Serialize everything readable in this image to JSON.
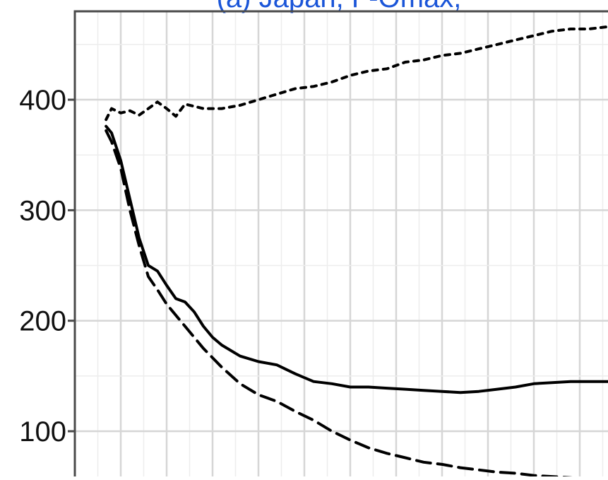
{
  "chart_data": {
    "type": "line",
    "title": "(a) Japan, F-Omax,",
    "xlabel": "",
    "ylabel": "",
    "ylim": [
      45,
      480
    ],
    "xlim": [
      0,
      30
    ],
    "yticks": [
      100,
      200,
      300,
      400
    ],
    "grid": true,
    "legend": "none",
    "series": [
      {
        "style": "dotted",
        "color": "#000000",
        "x": [
          1.7,
          2.0,
          2.5,
          3.0,
          3.5,
          4.0,
          4.5,
          5.0,
          5.5,
          6.0,
          6.5,
          7.0,
          8.0,
          9.0,
          10.0,
          11.0,
          12.0,
          13.0,
          14.0,
          15.0,
          16.0,
          17.0,
          18.0,
          19.0,
          20.0,
          21.0,
          22.0,
          23.0,
          24.0,
          25.0,
          26.0,
          27.0,
          28.0,
          29.0
        ],
        "values": [
          382,
          392,
          388,
          390,
          386,
          392,
          398,
          392,
          385,
          396,
          394,
          392,
          392,
          395,
          400,
          405,
          410,
          412,
          416,
          422,
          426,
          428,
          434,
          436,
          440,
          442,
          446,
          450,
          454,
          458,
          462,
          464,
          464,
          466
        ]
      },
      {
        "style": "solid",
        "color": "#000000",
        "x": [
          1.7,
          2.0,
          2.5,
          3.0,
          3.5,
          4.0,
          4.5,
          5.0,
          5.5,
          6.0,
          6.5,
          7.0,
          7.5,
          8.0,
          9.0,
          10.0,
          11.0,
          12.0,
          13.0,
          14.0,
          15.0,
          16.0,
          17.0,
          18.0,
          19.0,
          20.0,
          21.0,
          22.0,
          23.0,
          24.0,
          25.0,
          26.0,
          27.0,
          28.0,
          29.0,
          30.0
        ],
        "values": [
          376,
          370,
          345,
          310,
          275,
          250,
          245,
          232,
          220,
          217,
          208,
          195,
          185,
          178,
          168,
          163,
          160,
          152,
          145,
          143,
          140,
          140,
          139,
          138,
          137,
          136,
          135,
          136,
          138,
          140,
          143,
          144,
          145,
          145,
          145,
          144
        ]
      },
      {
        "style": "dashed",
        "color": "#000000",
        "x": [
          1.7,
          2.0,
          2.5,
          3.0,
          3.5,
          4.0,
          4.5,
          5.0,
          6.0,
          7.0,
          8.0,
          9.0,
          10.0,
          11.0,
          12.0,
          13.0,
          14.0,
          15.0,
          16.0,
          17.0,
          18.0,
          19.0,
          20.0,
          21.0,
          22.0,
          23.0,
          24.0,
          25.0,
          26.0,
          27.0,
          28.0,
          29.0,
          30.0
        ],
        "values": [
          372,
          362,
          338,
          300,
          268,
          240,
          228,
          215,
          195,
          175,
          158,
          143,
          133,
          127,
          118,
          110,
          100,
          92,
          85,
          80,
          76,
          72,
          70,
          67,
          65,
          63,
          62,
          60,
          59,
          58,
          56,
          55,
          53
        ]
      }
    ]
  }
}
